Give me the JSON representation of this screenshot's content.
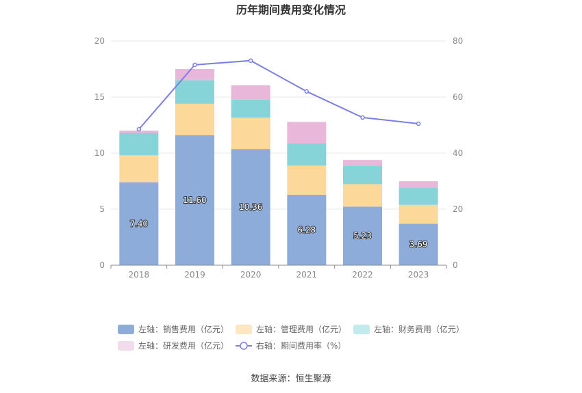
{
  "chart_data": {
    "type": "bar",
    "stacked": true,
    "title": "历年期间费用变化情况",
    "categories": [
      "2018",
      "2019",
      "2020",
      "2021",
      "2022",
      "2023"
    ],
    "left_axis": {
      "min": 0,
      "max": 20,
      "ticks": [
        0,
        5,
        10,
        15,
        20
      ]
    },
    "right_axis": {
      "min": 0,
      "max": 80,
      "ticks": [
        0,
        20,
        40,
        60,
        80
      ]
    },
    "series": [
      {
        "name": "左轴：销售费用（亿元）",
        "axis": "left",
        "kind": "bar",
        "color": "#8eacd9",
        "values": [
          7.4,
          11.6,
          10.36,
          6.28,
          5.23,
          3.69
        ],
        "labels": [
          "7.40",
          "11.60",
          "10.36",
          "6.28",
          "5.23",
          "3.69"
        ]
      },
      {
        "name": "左轴：管理费用（亿元）",
        "axis": "left",
        "kind": "bar",
        "color": "#fdd89b",
        "values": [
          2.4,
          2.8,
          2.8,
          2.6,
          2.0,
          1.7
        ]
      },
      {
        "name": "左轴：财务费用（亿元）",
        "axis": "left",
        "kind": "bar",
        "color": "#86d4d8",
        "values": [
          2.0,
          2.1,
          1.6,
          2.0,
          1.65,
          1.55
        ]
      },
      {
        "name": "左轴：研发费用（亿元）",
        "axis": "left",
        "kind": "bar",
        "color": "#e8b7d9",
        "values": [
          0.2,
          1.0,
          1.3,
          1.9,
          0.5,
          0.55
        ]
      },
      {
        "name": "右轴：期间费用率（%）",
        "axis": "right",
        "kind": "line",
        "color": "#7b7fe8",
        "values": [
          48.5,
          71.5,
          73.0,
          62.0,
          52.7,
          50.5
        ]
      }
    ]
  },
  "footer": {
    "source": "数据来源：恒生聚源"
  }
}
